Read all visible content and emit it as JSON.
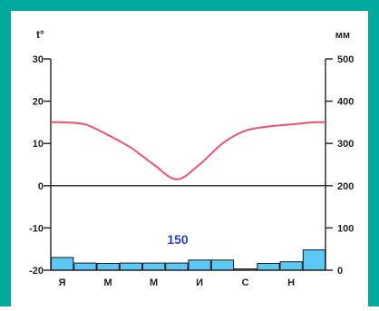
{
  "chart_data": {
    "type": "climatogram",
    "left_axis_label": "t°",
    "right_axis_label": "мм",
    "left_ticks": [
      "30",
      "20",
      "10",
      "0",
      "-10",
      "-20"
    ],
    "right_ticks": [
      "500",
      "400",
      "300",
      "200",
      "100",
      "0"
    ],
    "temperature_range": [
      -20,
      30
    ],
    "precipitation_range": [
      0,
      500
    ],
    "month_labels": [
      "Я",
      "",
      "М",
      "",
      "М",
      "",
      "И",
      "",
      "С",
      "",
      "Н",
      ""
    ],
    "annotation": "150",
    "colors": {
      "temperature_line": "#f0506e",
      "precipitation_bar": "#5bc8f5",
      "annotation": "#2b3fbf",
      "frame": "#00a99d"
    },
    "series": [
      {
        "name": "temperature",
        "unit": "°C",
        "values": [
          15,
          14.5,
          12,
          9,
          5,
          1.5,
          5,
          10,
          13,
          14,
          14.5,
          15
        ]
      },
      {
        "name": "precipitation",
        "unit": "mm",
        "values": [
          30,
          17,
          16,
          17,
          17,
          17,
          24,
          24,
          3,
          16,
          20,
          48
        ]
      }
    ]
  }
}
